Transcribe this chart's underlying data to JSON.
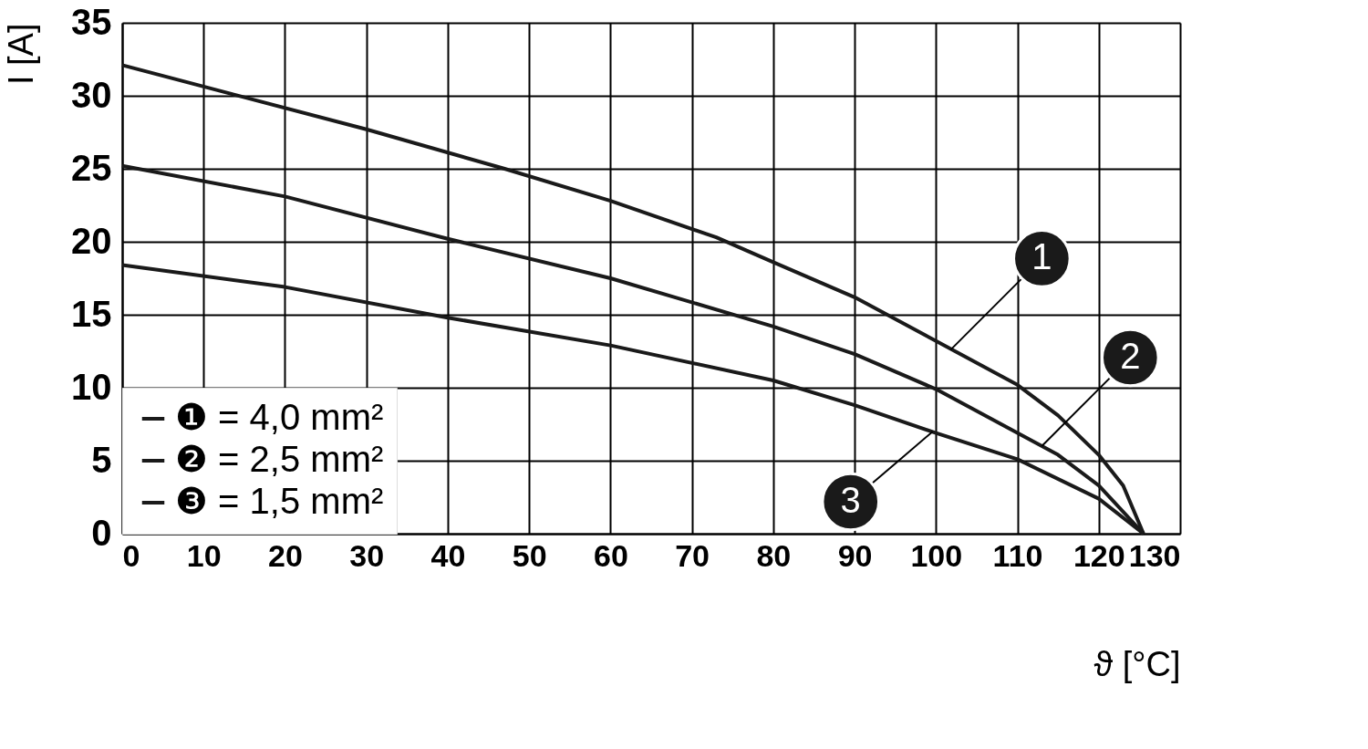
{
  "chart_data": {
    "type": "line",
    "xlabel": "ϑ [°C]",
    "ylabel": "I [A]",
    "xlim": [
      0,
      130
    ],
    "ylim": [
      0,
      35
    ],
    "xticks": [
      0,
      10,
      20,
      30,
      40,
      50,
      60,
      70,
      80,
      90,
      100,
      110,
      120,
      130
    ],
    "yticks": [
      0,
      5,
      10,
      15,
      20,
      25,
      30,
      35
    ],
    "grid": true,
    "legend": "bottom left",
    "marker": "none",
    "line_style": "solid",
    "series": [
      {
        "name": "❶ = 4,0 mm²",
        "color": "#1a1a1a",
        "x": [
          0,
          15,
          30,
          47,
          60,
          73,
          80,
          90,
          100,
          110,
          115,
          120,
          123,
          125.5
        ],
        "values": [
          32.1,
          29.9,
          27.7,
          25.0,
          22.8,
          20.3,
          18.6,
          16.2,
          13.2,
          10.2,
          8.1,
          5.4,
          3.3,
          0
        ]
      },
      {
        "name": "❷ = 2,5 mm²",
        "color": "#1a1a1a",
        "x": [
          0,
          20,
          40,
          60,
          80,
          90,
          100,
          110,
          115,
          120,
          125.5
        ],
        "values": [
          25.2,
          23.1,
          20.2,
          17.5,
          14.2,
          12.3,
          9.9,
          6.9,
          5.4,
          3.3,
          0
        ]
      },
      {
        "name": "❸ = 1,5 mm²",
        "color": "#1a1a1a",
        "x": [
          0,
          20,
          40,
          60,
          80,
          90,
          100,
          110,
          120,
          125.5
        ],
        "values": [
          18.4,
          16.9,
          14.8,
          12.9,
          10.5,
          8.8,
          6.9,
          5.1,
          2.4,
          0
        ]
      }
    ],
    "annotations": [
      {
        "text": "1",
        "x": 101.8,
        "y": 12.6
      },
      {
        "text": "2",
        "x": 113,
        "y": 6.0
      },
      {
        "text": "3",
        "x": 99.6,
        "y": 7.0
      }
    ]
  }
}
